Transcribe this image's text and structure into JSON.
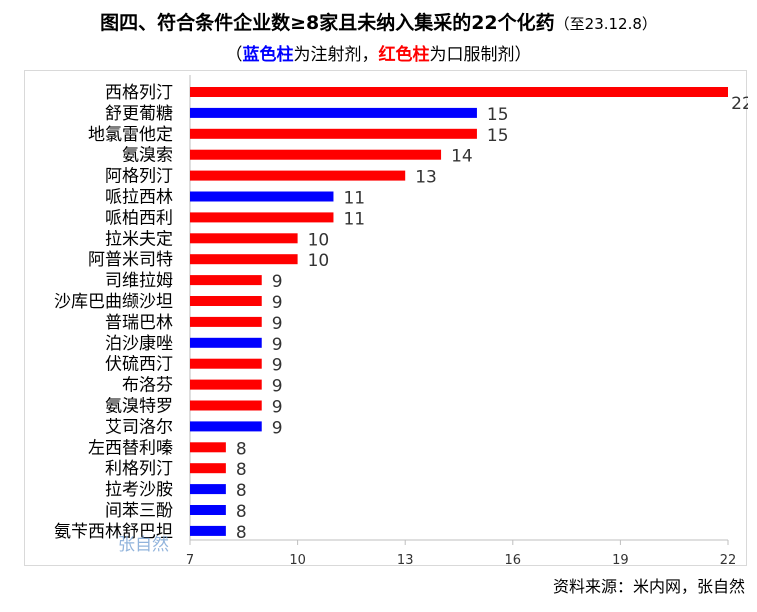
{
  "title": {
    "main": "图四、符合条件企业数≥8家且未纳入集采的22个化药",
    "date": "（至23.12.8）",
    "subtitle_open": "（",
    "subtitle_blue": "蓝色柱",
    "subtitle_mid": "为注射剂，",
    "subtitle_red": "红色柱",
    "subtitle_end": "为口服制剂）"
  },
  "source": "资料来源：米内网，张自然",
  "watermark": "张自然",
  "colors": {
    "injection": "#0000ff",
    "oral": "#ff0000",
    "axis": "#bfbfbf"
  },
  "chart_data": {
    "type": "bar",
    "orientation": "horizontal",
    "categories": [
      "西格列汀",
      "舒更葡糖",
      "地氯雷他定",
      "氨溴索",
      "阿格列汀",
      "哌拉西林",
      "哌柏西利",
      "拉米夫定",
      "阿普米司特",
      "司维拉姆",
      "沙库巴曲缬沙坦",
      "普瑞巴林",
      "泊沙康唑",
      "伏硫西汀",
      "布洛芬",
      "氨溴特罗",
      "艾司洛尔",
      "左西替利嗪",
      "利格列汀",
      "拉考沙胺",
      "间苯三酚",
      "氨苄西林舒巴坦"
    ],
    "values": [
      22,
      15,
      15,
      14,
      13,
      11,
      11,
      10,
      10,
      9,
      9,
      9,
      9,
      9,
      9,
      9,
      9,
      8,
      8,
      8,
      8,
      8
    ],
    "bar_type": [
      "oral",
      "injection",
      "oral",
      "oral",
      "oral",
      "injection",
      "oral",
      "oral",
      "oral",
      "oral",
      "oral",
      "oral",
      "injection",
      "oral",
      "oral",
      "oral",
      "injection",
      "oral",
      "oral",
      "injection",
      "injection",
      "injection"
    ],
    "xlim": [
      7,
      22
    ],
    "xticks": [
      7,
      10,
      13,
      16,
      19,
      22
    ],
    "grid": false,
    "legend": "none"
  }
}
